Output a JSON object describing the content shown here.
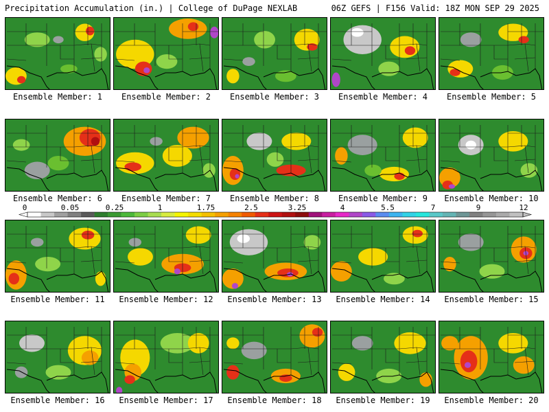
{
  "header": {
    "left": "Precipitation Accumulation (in.) | College of DuPage NEXLAB",
    "right": "06Z GEFS | F156 Valid: 18Z MON SEP 29 2025"
  },
  "member_label_prefix": "Ensemble Member:",
  "members": [
    {
      "label": "Ensemble Member: 1",
      "blobs": [
        [
          0.75,
          0.2,
          0.09,
          0.12,
          "#f5d800"
        ],
        [
          0.8,
          0.18,
          0.04,
          0.06,
          "#e53018"
        ],
        [
          0.3,
          0.3,
          0.12,
          0.1,
          "#8fd44a"
        ],
        [
          0.5,
          0.3,
          0.05,
          0.05,
          "#9aa0a0"
        ],
        [
          0.1,
          0.8,
          0.1,
          0.12,
          "#f5d800"
        ],
        [
          0.15,
          0.85,
          0.04,
          0.05,
          "#e53018"
        ],
        [
          0.9,
          0.5,
          0.06,
          0.1,
          "#8fd44a"
        ],
        [
          0.6,
          0.7,
          0.08,
          0.06,
          "#6abf30"
        ]
      ]
    },
    {
      "label": "Ensemble Member: 2",
      "blobs": [
        [
          0.2,
          0.5,
          0.18,
          0.2,
          "#f5d800"
        ],
        [
          0.28,
          0.7,
          0.08,
          0.1,
          "#e53018"
        ],
        [
          0.31,
          0.72,
          0.03,
          0.04,
          "#b046c8"
        ],
        [
          0.7,
          0.15,
          0.18,
          0.14,
          "#f5a000"
        ],
        [
          0.75,
          0.12,
          0.05,
          0.06,
          "#e53018"
        ],
        [
          0.95,
          0.2,
          0.04,
          0.08,
          "#b046c8"
        ],
        [
          0.5,
          0.6,
          0.1,
          0.1,
          "#8fd44a"
        ]
      ]
    },
    {
      "label": "Ensemble Member: 3",
      "blobs": [
        [
          0.8,
          0.3,
          0.12,
          0.15,
          "#f5d800"
        ],
        [
          0.85,
          0.4,
          0.05,
          0.05,
          "#e53018"
        ],
        [
          0.4,
          0.3,
          0.1,
          0.12,
          "#8fd44a"
        ],
        [
          0.25,
          0.6,
          0.06,
          0.06,
          "#9aa0a0"
        ],
        [
          0.6,
          0.8,
          0.1,
          0.08,
          "#6abf30"
        ],
        [
          0.1,
          0.8,
          0.06,
          0.1,
          "#f5d800"
        ]
      ]
    },
    {
      "label": "Ensemble Member: 4",
      "blobs": [
        [
          0.3,
          0.3,
          0.18,
          0.2,
          "#c8c8c8"
        ],
        [
          0.25,
          0.2,
          0.06,
          0.06,
          "#ffffff"
        ],
        [
          0.7,
          0.4,
          0.14,
          0.15,
          "#f5d800"
        ],
        [
          0.75,
          0.45,
          0.05,
          0.06,
          "#e53018"
        ],
        [
          0.05,
          0.85,
          0.04,
          0.1,
          "#b046c8"
        ],
        [
          0.55,
          0.7,
          0.1,
          0.1,
          "#8fd44a"
        ]
      ]
    },
    {
      "label": "Ensemble Member: 5",
      "blobs": [
        [
          0.3,
          0.3,
          0.1,
          0.1,
          "#9aa0a0"
        ],
        [
          0.7,
          0.2,
          0.14,
          0.12,
          "#f5d800"
        ],
        [
          0.8,
          0.3,
          0.05,
          0.05,
          "#e53018"
        ],
        [
          0.2,
          0.7,
          0.12,
          0.12,
          "#f5d800"
        ],
        [
          0.15,
          0.75,
          0.05,
          0.05,
          "#e53018"
        ],
        [
          0.6,
          0.75,
          0.1,
          0.1,
          "#6abf30"
        ]
      ]
    },
    {
      "label": "Ensemble Member: 6",
      "blobs": [
        [
          0.75,
          0.3,
          0.2,
          0.2,
          "#f5a000"
        ],
        [
          0.8,
          0.25,
          0.1,
          0.12,
          "#e53018"
        ],
        [
          0.85,
          0.3,
          0.04,
          0.06,
          "#b01010"
        ],
        [
          0.3,
          0.7,
          0.12,
          0.12,
          "#9aa0a0"
        ],
        [
          0.15,
          0.35,
          0.08,
          0.08,
          "#8fd44a"
        ],
        [
          0.5,
          0.6,
          0.1,
          0.1,
          "#6abf30"
        ]
      ]
    },
    {
      "label": "Ensemble Member: 7",
      "blobs": [
        [
          0.2,
          0.6,
          0.18,
          0.15,
          "#f5d800"
        ],
        [
          0.18,
          0.65,
          0.08,
          0.06,
          "#e53018"
        ],
        [
          0.6,
          0.5,
          0.14,
          0.15,
          "#f5d800"
        ],
        [
          0.75,
          0.25,
          0.15,
          0.15,
          "#f5a000"
        ],
        [
          0.4,
          0.3,
          0.06,
          0.06,
          "#9aa0a0"
        ],
        [
          0.9,
          0.7,
          0.06,
          0.1,
          "#8fd44a"
        ]
      ]
    },
    {
      "label": "Ensemble Member: 8",
      "blobs": [
        [
          0.35,
          0.3,
          0.12,
          0.12,
          "#c8c8c8"
        ],
        [
          0.7,
          0.3,
          0.14,
          0.12,
          "#f5d800"
        ],
        [
          0.1,
          0.7,
          0.1,
          0.2,
          "#f5a000"
        ],
        [
          0.12,
          0.75,
          0.05,
          0.08,
          "#e53018"
        ],
        [
          0.14,
          0.78,
          0.02,
          0.03,
          "#b046c8"
        ],
        [
          0.65,
          0.7,
          0.14,
          0.08,
          "#e53018"
        ],
        [
          0.5,
          0.55,
          0.08,
          0.1,
          "#8fd44a"
        ]
      ]
    },
    {
      "label": "Ensemble Member: 9",
      "blobs": [
        [
          0.3,
          0.35,
          0.14,
          0.14,
          "#9aa0a0"
        ],
        [
          0.8,
          0.25,
          0.12,
          0.14,
          "#f5d800"
        ],
        [
          0.1,
          0.5,
          0.06,
          0.12,
          "#f5a000"
        ],
        [
          0.6,
          0.75,
          0.14,
          0.1,
          "#f5d800"
        ],
        [
          0.65,
          0.78,
          0.05,
          0.05,
          "#e53018"
        ],
        [
          0.4,
          0.7,
          0.08,
          0.08,
          "#6abf30"
        ]
      ]
    },
    {
      "label": "Ensemble Member: 10",
      "blobs": [
        [
          0.3,
          0.35,
          0.12,
          0.14,
          "#c8c8c8"
        ],
        [
          0.3,
          0.35,
          0.05,
          0.06,
          "#ffffff"
        ],
        [
          0.7,
          0.3,
          0.14,
          0.14,
          "#f5d800"
        ],
        [
          0.1,
          0.8,
          0.1,
          0.14,
          "#f5a000"
        ],
        [
          0.08,
          0.9,
          0.05,
          0.06,
          "#e53018"
        ],
        [
          0.12,
          0.92,
          0.03,
          0.03,
          "#b046c8"
        ],
        [
          0.85,
          0.7,
          0.08,
          0.1,
          "#8fd44a"
        ]
      ]
    },
    {
      "label": "Ensemble Member: 11",
      "blobs": [
        [
          0.75,
          0.25,
          0.15,
          0.15,
          "#f5d800"
        ],
        [
          0.78,
          0.2,
          0.06,
          0.06,
          "#e53018"
        ],
        [
          0.1,
          0.75,
          0.1,
          0.2,
          "#f5a000"
        ],
        [
          0.08,
          0.8,
          0.05,
          0.08,
          "#e53018"
        ],
        [
          0.4,
          0.6,
          0.12,
          0.1,
          "#8fd44a"
        ],
        [
          0.3,
          0.3,
          0.06,
          0.06,
          "#9aa0a0"
        ],
        [
          0.9,
          0.8,
          0.05,
          0.1,
          "#f5d800"
        ]
      ]
    },
    {
      "label": "Ensemble Member: 12",
      "blobs": [
        [
          0.65,
          0.6,
          0.2,
          0.14,
          "#f5a000"
        ],
        [
          0.65,
          0.65,
          0.08,
          0.06,
          "#e53018"
        ],
        [
          0.6,
          0.7,
          0.03,
          0.04,
          "#b046c8"
        ],
        [
          0.8,
          0.2,
          0.12,
          0.12,
          "#f5d800"
        ],
        [
          0.25,
          0.5,
          0.12,
          0.12,
          "#f5d800"
        ],
        [
          0.2,
          0.3,
          0.06,
          0.06,
          "#9aa0a0"
        ]
      ]
    },
    {
      "label": "Ensemble Member: 13",
      "blobs": [
        [
          0.25,
          0.3,
          0.18,
          0.18,
          "#c8c8c8"
        ],
        [
          0.2,
          0.25,
          0.06,
          0.06,
          "#ffffff"
        ],
        [
          0.6,
          0.7,
          0.2,
          0.12,
          "#f5a000"
        ],
        [
          0.62,
          0.72,
          0.1,
          0.06,
          "#e53018"
        ],
        [
          0.64,
          0.74,
          0.03,
          0.03,
          "#b046c8"
        ],
        [
          0.1,
          0.8,
          0.1,
          0.14,
          "#f5a000"
        ],
        [
          0.12,
          0.9,
          0.03,
          0.04,
          "#b046c8"
        ],
        [
          0.85,
          0.3,
          0.08,
          0.1,
          "#8fd44a"
        ]
      ]
    },
    {
      "label": "Ensemble Member: 14",
      "blobs": [
        [
          0.8,
          0.2,
          0.12,
          0.12,
          "#f5d800"
        ],
        [
          0.82,
          0.18,
          0.05,
          0.05,
          "#e53018"
        ],
        [
          0.4,
          0.5,
          0.14,
          0.12,
          "#f5d800"
        ],
        [
          0.1,
          0.7,
          0.1,
          0.14,
          "#f5a000"
        ],
        [
          0.6,
          0.8,
          0.1,
          0.08,
          "#8fd44a"
        ]
      ]
    },
    {
      "label": "Ensemble Member: 15",
      "blobs": [
        [
          0.8,
          0.4,
          0.12,
          0.18,
          "#f5a000"
        ],
        [
          0.82,
          0.45,
          0.06,
          0.08,
          "#e53018"
        ],
        [
          0.82,
          0.45,
          0.025,
          0.03,
          "#b046c8"
        ],
        [
          0.3,
          0.3,
          0.12,
          0.12,
          "#9aa0a0"
        ],
        [
          0.1,
          0.6,
          0.06,
          0.1,
          "#f5a000"
        ],
        [
          0.5,
          0.7,
          0.12,
          0.1,
          "#8fd44a"
        ]
      ]
    },
    {
      "label": "Ensemble Member: 16",
      "blobs": [
        [
          0.25,
          0.3,
          0.12,
          0.12,
          "#c8c8c8"
        ],
        [
          0.75,
          0.4,
          0.16,
          0.2,
          "#f5d800"
        ],
        [
          0.8,
          0.5,
          0.08,
          0.1,
          "#f5a000"
        ],
        [
          0.5,
          0.7,
          0.12,
          0.1,
          "#8fd44a"
        ],
        [
          0.15,
          0.7,
          0.06,
          0.08,
          "#9aa0a0"
        ]
      ]
    },
    {
      "label": "Ensemble Member: 17",
      "blobs": [
        [
          0.2,
          0.5,
          0.14,
          0.25,
          "#f5d800"
        ],
        [
          0.18,
          0.7,
          0.08,
          0.12,
          "#f5a000"
        ],
        [
          0.15,
          0.8,
          0.05,
          0.06,
          "#e53018"
        ],
        [
          0.05,
          0.95,
          0.03,
          0.05,
          "#b046c8"
        ],
        [
          0.6,
          0.3,
          0.16,
          0.14,
          "#8fd44a"
        ],
        [
          0.8,
          0.3,
          0.1,
          0.14,
          "#f5d800"
        ]
      ]
    },
    {
      "label": "Ensemble Member: 18",
      "blobs": [
        [
          0.85,
          0.2,
          0.12,
          0.16,
          "#f5a000"
        ],
        [
          0.9,
          0.15,
          0.05,
          0.06,
          "#e53018"
        ],
        [
          0.6,
          0.75,
          0.14,
          0.1,
          "#f5a000"
        ],
        [
          0.6,
          0.78,
          0.06,
          0.05,
          "#e53018"
        ],
        [
          0.3,
          0.4,
          0.12,
          0.12,
          "#9aa0a0"
        ],
        [
          0.1,
          0.3,
          0.06,
          0.08,
          "#f5d800"
        ],
        [
          0.1,
          0.7,
          0.06,
          0.1,
          "#e53018"
        ]
      ]
    },
    {
      "label": "Ensemble Member: 19",
      "blobs": [
        [
          0.75,
          0.3,
          0.15,
          0.15,
          "#f5d800"
        ],
        [
          0.3,
          0.3,
          0.1,
          0.1,
          "#9aa0a0"
        ],
        [
          0.15,
          0.7,
          0.08,
          0.12,
          "#f5d800"
        ],
        [
          0.55,
          0.75,
          0.12,
          0.1,
          "#8fd44a"
        ],
        [
          0.9,
          0.8,
          0.06,
          0.1,
          "#f5a000"
        ]
      ]
    },
    {
      "label": "Ensemble Member: 20",
      "blobs": [
        [
          0.3,
          0.5,
          0.16,
          0.3,
          "#f5a000"
        ],
        [
          0.28,
          0.55,
          0.08,
          0.15,
          "#e53018"
        ],
        [
          0.27,
          0.6,
          0.03,
          0.04,
          "#b046c8"
        ],
        [
          0.7,
          0.3,
          0.14,
          0.14,
          "#f5d800"
        ],
        [
          0.8,
          0.6,
          0.1,
          0.12,
          "#f5a000"
        ],
        [
          0.1,
          0.3,
          0.08,
          0.1,
          "#f5a000"
        ]
      ]
    }
  ],
  "colorbar": {
    "labels": [
      "0",
      "0.05",
      "0.25",
      "1",
      "1.75",
      "2.5",
      "3.25",
      "4",
      "5.5",
      "7",
      "9",
      "12"
    ],
    "colors": [
      "#ffffff",
      "#c8c8c8",
      "#a0a0a0",
      "#808080",
      "#5a5a5a",
      "#2e7d2e",
      "#3a9a32",
      "#4cb83a",
      "#7ccd44",
      "#a8dc50",
      "#d8ec40",
      "#f5f500",
      "#f5dc00",
      "#f5c000",
      "#f5a000",
      "#f58200",
      "#f05a00",
      "#e53018",
      "#cc1414",
      "#b01010",
      "#8c0c0c",
      "#a0127a",
      "#c81ea0",
      "#e628c8",
      "#b046c8",
      "#8a5ae6",
      "#5a8cf0",
      "#3cb4f0",
      "#32d2e6",
      "#28e6dc",
      "#5ac8c8",
      "#64b4b4",
      "#6e9696",
      "#808080",
      "#969696",
      "#aaaaaa",
      "#c0c0c0"
    ],
    "min": 0,
    "max": 12,
    "units": "in."
  }
}
